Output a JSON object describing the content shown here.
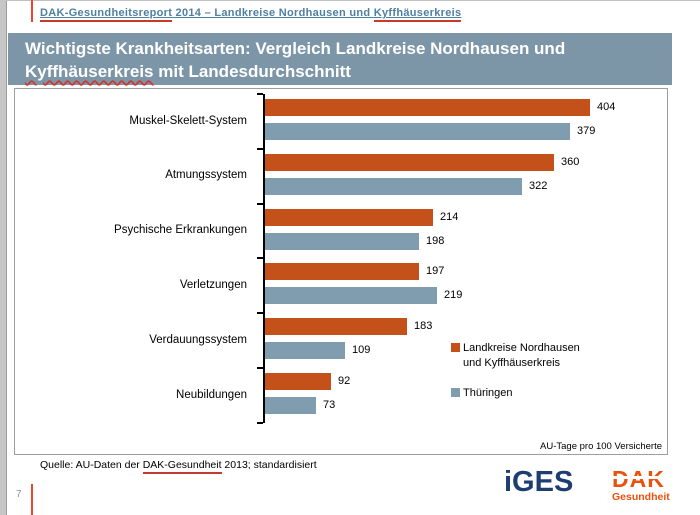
{
  "header": {
    "report": "DAK-Gesundheitsreport",
    "middle": " 2014 – Landkreise Nordhausen und ",
    "region": "Kyffhäuserkreis"
  },
  "title": {
    "line1": "Wichtigste Krankheitsarten: Vergleich Landkreise Nordhausen und",
    "line2_word": "Kyffhäuserkreis",
    "line2_rest": " mit Landesdurchschnitt"
  },
  "chart_data": {
    "type": "bar",
    "orientation": "horizontal",
    "title": "Wichtigste Krankheitsarten: Vergleich Landkreise Nordhausen und Kyffhäuserkreis mit Landesdurchschnitt",
    "categories": [
      "Muskel-Skelett-System",
      "Atmungssystem",
      "Psychische Erkrankungen",
      "Verletzungen",
      "Verdauungssystem",
      "Neubildungen"
    ],
    "series": [
      {
        "name": "Landkreise Nordhausen und Kyffhäuserkreis",
        "color": "#C5511A",
        "values": [
          404,
          360,
          214,
          197,
          183,
          92
        ]
      },
      {
        "name": "Thüringen",
        "color": "#7F9DAE",
        "values": [
          379,
          322,
          198,
          219,
          109,
          73
        ]
      }
    ],
    "value_axis_note": "AU-Tage pro 100 Versicherte",
    "xlim": [
      0,
      450
    ],
    "grid": false,
    "legend_position": "right"
  },
  "legend": {
    "entry1_line1": "Landkreise Nordhausen",
    "entry1_line2": "und Kyffhäuserkreis",
    "entry2": "Thüringen"
  },
  "note": "AU-Tage pro 100 Versicherte",
  "source": {
    "prefix": "Quelle: AU-Daten der ",
    "link": "DAK-Gesundheit",
    "suffix": " 2013; standardisiert"
  },
  "footer": {
    "page_number": "7",
    "iges": "iGES",
    "dak": "DAK",
    "dak_sub": "Gesundheit"
  },
  "colors": {
    "accent_orange": "#C5511A",
    "accent_bluegray": "#7F9DAE",
    "banner_background": "#7C96A8",
    "header_text": "#4E80A1",
    "red_accent": "#C43C2C",
    "iges_navy": "#1D3D73",
    "dak_orange": "#E8520F"
  }
}
